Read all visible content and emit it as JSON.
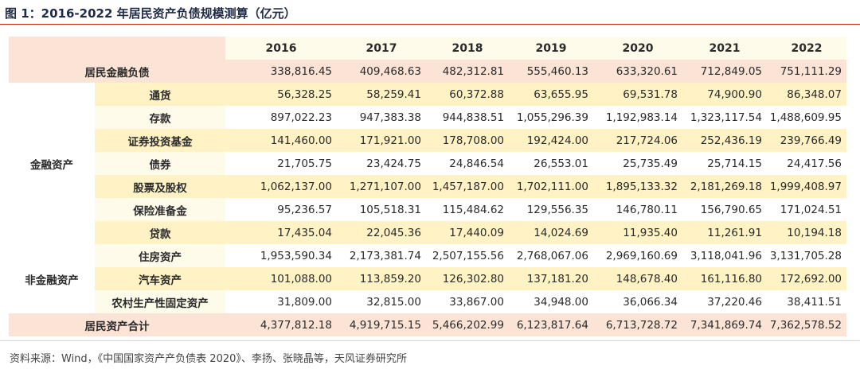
{
  "title": "图 1：2016-2022 年居民资产负债规模测算（亿元）",
  "source": "资料来源：Wind，《中国国家资产产负债表 2020》、李扬、张晓晶等，天风证券研究所",
  "years": [
    "2016",
    "2017",
    "2018",
    "2019",
    "2020",
    "2021",
    "2022"
  ],
  "liability_row": {
    "label": "居民金融负债",
    "values": [
      "338,816.45",
      "409,468.63",
      "482,312.81",
      "555,460.13",
      "633,320.61",
      "712,849.05",
      "751,111.29"
    ]
  },
  "groups": [
    {
      "label": "金融资产",
      "rows": [
        {
          "label": "通货",
          "values": [
            "56,328.25",
            "58,259.41",
            "60,372.88",
            "63,655.95",
            "69,531.78",
            "74,900.90",
            "86,348.07"
          ]
        },
        {
          "label": "存款",
          "values": [
            "897,022.23",
            "947,383.38",
            "944,838.51",
            "1,055,296.39",
            "1,192,983.14",
            "1,323,117.54",
            "1,488,609.95"
          ]
        },
        {
          "label": "证券投资基金",
          "values": [
            "141,460.00",
            "171,921.00",
            "178,708.00",
            "192,424.00",
            "217,724.06",
            "252,436.19",
            "239,766.49"
          ]
        },
        {
          "label": "债券",
          "values": [
            "21,705.75",
            "23,424.75",
            "24,846.54",
            "26,553.01",
            "25,735.49",
            "25,714.15",
            "24,417.56"
          ]
        },
        {
          "label": "股票及股权",
          "values": [
            "1,062,137.00",
            "1,271,107.00",
            "1,457,187.00",
            "1,702,111.00",
            "1,895,133.32",
            "2,181,269.18",
            "1,999,408.97"
          ]
        },
        {
          "label": "保险准备金",
          "values": [
            "95,236.57",
            "105,518.31",
            "115,484.62",
            "129,556.35",
            "146,780.11",
            "156,790.65",
            "171,024.51"
          ]
        },
        {
          "label": "贷款",
          "values": [
            "17,435.04",
            "22,045.36",
            "17,440.09",
            "14,024.69",
            "11,935.40",
            "11,261.91",
            "10,194.18"
          ]
        }
      ]
    },
    {
      "label": "非金融资产",
      "rows": [
        {
          "label": "住房资产",
          "values": [
            "1,953,590.34",
            "2,173,381.74",
            "2,507,155.56",
            "2,768,067.06",
            "2,969,160.69",
            "3,118,041.96",
            "3,131,705.28"
          ]
        },
        {
          "label": "汽车资产",
          "values": [
            "101,088.00",
            "113,859.20",
            "126,302.80",
            "137,181.20",
            "148,678.40",
            "161,116.80",
            "172,692.00"
          ]
        },
        {
          "label": "农村生产性固定资产",
          "values": [
            "31,809.00",
            "32,815.00",
            "33,867.00",
            "34,948.00",
            "36,066.34",
            "37,220.46",
            "38,411.51"
          ]
        }
      ]
    }
  ],
  "total_row": {
    "label": "居民资产合计",
    "values": [
      "4,377,812.18",
      "4,919,715.15",
      "5,466,202.99",
      "6,123,817.64",
      "6,713,728.72",
      "7,341,869.74",
      "7,362,578.52"
    ]
  }
}
